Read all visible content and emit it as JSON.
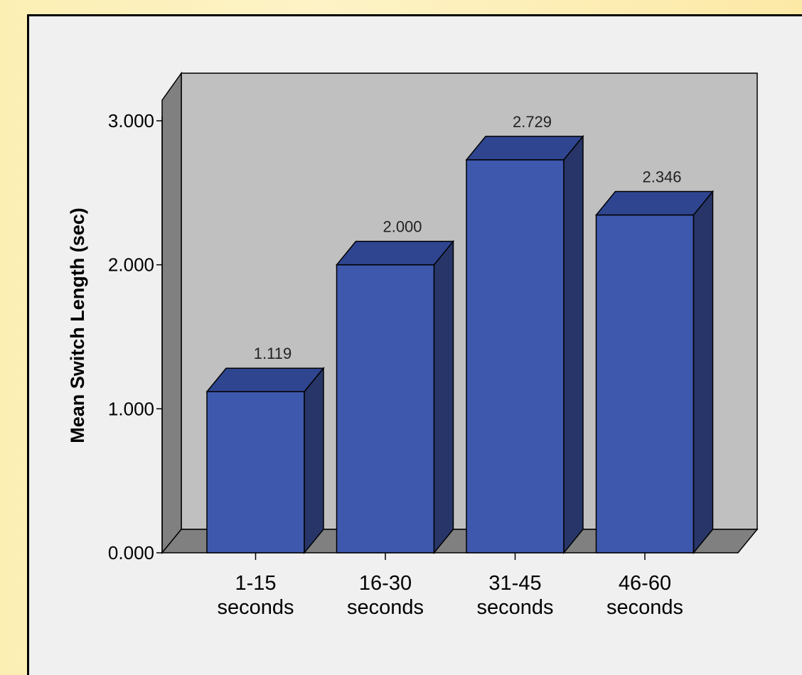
{
  "chart_data": {
    "type": "bar",
    "title": "",
    "xlabel": "",
    "ylabel": "Mean Switch Length (sec)",
    "ylim": [
      0,
      3
    ],
    "yticks": [
      0,
      1,
      2,
      3
    ],
    "ytick_labels": [
      "0.000",
      "1.000",
      "2.000",
      "3.000"
    ],
    "categories": [
      [
        "1-15",
        "seconds"
      ],
      [
        "16-30",
        "seconds"
      ],
      [
        "31-45",
        "seconds"
      ],
      [
        "46-60",
        "seconds"
      ]
    ],
    "values": [
      1.119,
      2.0,
      2.729,
      2.346
    ],
    "data_labels": [
      "1.119",
      "2.000",
      "2.729",
      "2.346"
    ],
    "grid": false,
    "legend": "none",
    "style": "3d",
    "colors": {
      "bar_front": "#3e58ad",
      "bar_top": "#2f4590",
      "bar_side": "#273568",
      "wall": "#c0c0c0",
      "floor": "#808080",
      "side_wall": "#808080"
    }
  }
}
